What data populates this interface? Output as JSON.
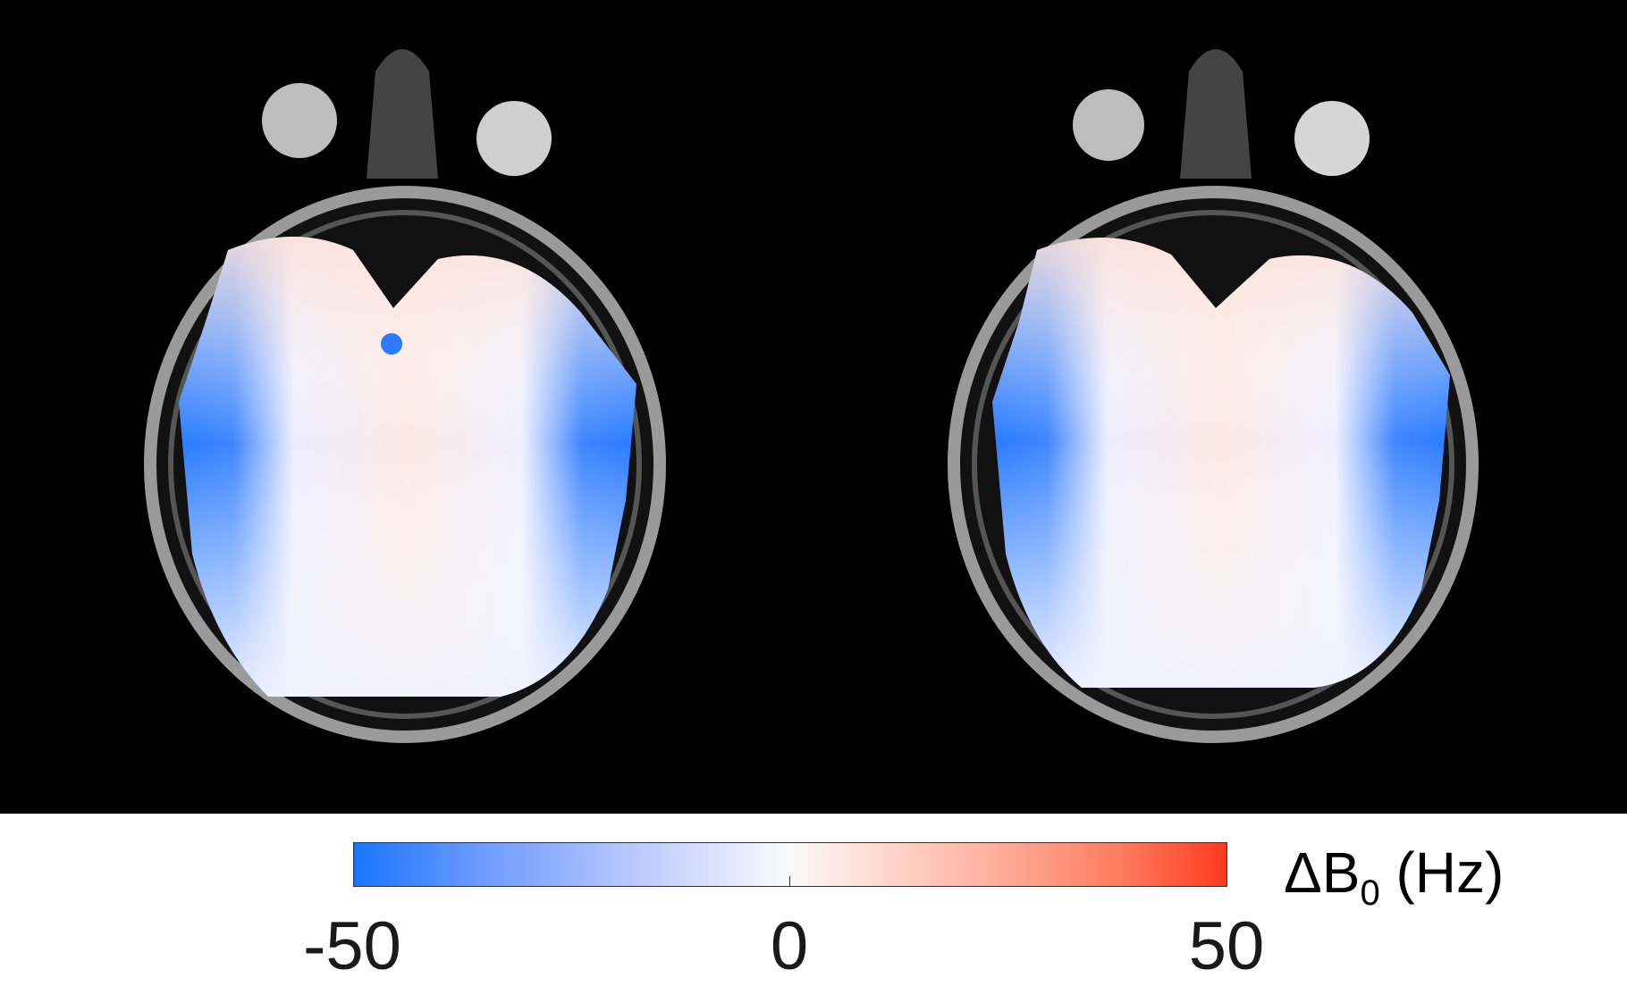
{
  "colorbar": {
    "label_prefix": "ΔB",
    "label_sub": "0",
    "label_unit": " (Hz)",
    "ticks": [
      "-50",
      "0",
      "50"
    ],
    "range": [
      -50,
      50
    ],
    "colormap": {
      "low": "#1a74ff",
      "mid": "#fafafa",
      "high": "#ff3a1e"
    }
  },
  "panels": [
    {
      "name": "left-slice"
    },
    {
      "name": "right-slice"
    }
  ]
}
